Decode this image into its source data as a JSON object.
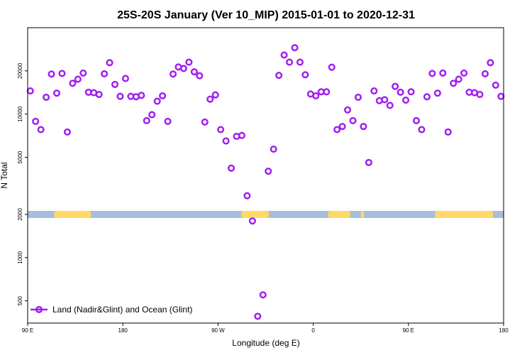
{
  "chart_data": {
    "type": "scatter",
    "title": "25S-20S January (Ver 10_MIP)   2015-01-01 to 2020-12-31",
    "xlabel": "Longitude (deg E)",
    "ylabel": "N Total",
    "y_scale": "log",
    "ylim": [
      350,
      40000
    ],
    "x_positions_deg_east_of_90E": [
      0,
      90,
      180,
      270,
      360,
      450
    ],
    "x_tick_labels": [
      "90 E",
      "180",
      "90 W",
      "0",
      "90 E",
      "180"
    ],
    "y_tick_values": [
      500,
      1000,
      2000,
      5000,
      10000,
      20000
    ],
    "y_tick_labels": [
      "500",
      "1000",
      "2000",
      "5000",
      "10000",
      "20000"
    ],
    "grid": false,
    "legend": {
      "position": "bottom-left",
      "entries": [
        "Land (Nadir&Glint) and Ocean (Glint)"
      ]
    },
    "marker_color": "#a020f0",
    "land_color": "#ffd966",
    "ocean_color": "#a7bddb",
    "surface_band_y": 2000,
    "surface_land_segments_deg_east_of_90E": [
      [
        25,
        60
      ],
      [
        202,
        228
      ],
      [
        284,
        305
      ],
      [
        315,
        318
      ],
      [
        385,
        440
      ]
    ],
    "series": [
      {
        "name": "Land (Nadir&Glint) and Ocean (Glint)",
        "x_deg_east_of_90E": [
          2.5,
          7.5,
          12.5,
          17.5,
          22.5,
          27.5,
          32.5,
          37.5,
          42.5,
          47.5,
          52.5,
          57.5,
          62.5,
          67.5,
          72.5,
          77.5,
          82.5,
          87.5,
          92.5,
          97.5,
          102.5,
          107.5,
          112.5,
          117.5,
          122.5,
          127.5,
          132.5,
          137.5,
          142.5,
          147.5,
          152.5,
          157.5,
          162.5,
          167.5,
          172.5,
          177.5,
          182.5,
          187.5,
          192.5,
          197.5,
          202.5,
          207.5,
          212.5,
          217.5,
          222.5,
          227.5,
          232.5,
          237.5,
          242.5,
          247.5,
          252.5,
          257.5,
          262.5,
          267.5,
          272.5,
          277.5,
          282.5,
          287.5,
          292.5,
          297.5,
          302.5,
          307.5,
          312.5,
          317.5,
          322.5,
          327.5,
          332.5,
          337.5,
          342.5,
          347.5,
          352.5,
          357.5,
          362.5,
          367.5,
          372.5,
          377.5,
          382.5,
          387.5,
          392.5,
          397.5,
          402.5,
          407.5,
          412.5,
          417.5,
          422.5,
          427.5,
          432.5,
          437.5,
          442.5,
          447.5
        ],
        "values": [
          14500,
          8900,
          7800,
          13100,
          19000,
          14000,
          19200,
          7500,
          16400,
          17500,
          19300,
          14200,
          14100,
          13700,
          19100,
          22800,
          16100,
          13300,
          17700,
          13300,
          13200,
          13500,
          9000,
          9900,
          12300,
          13400,
          8900,
          19000,
          21300,
          20800,
          23000,
          19700,
          18500,
          8800,
          12700,
          13600,
          7800,
          6500,
          4200,
          7000,
          7100,
          2700,
          1800,
          390,
          550,
          4000,
          5700,
          18600,
          25800,
          23000,
          29000,
          23000,
          18800,
          13800,
          13400,
          14300,
          14300,
          21200,
          7800,
          8200,
          10700,
          9000,
          13100,
          8200,
          4600,
          14500,
          12400,
          12600,
          11500,
          15600,
          14200,
          12500,
          14300,
          9000,
          7800,
          13200,
          19200,
          14000,
          19300,
          7500,
          16400,
          17500,
          19300,
          14200,
          14100,
          13700,
          19100,
          22800,
          15900,
          13300
        ]
      }
    ]
  }
}
